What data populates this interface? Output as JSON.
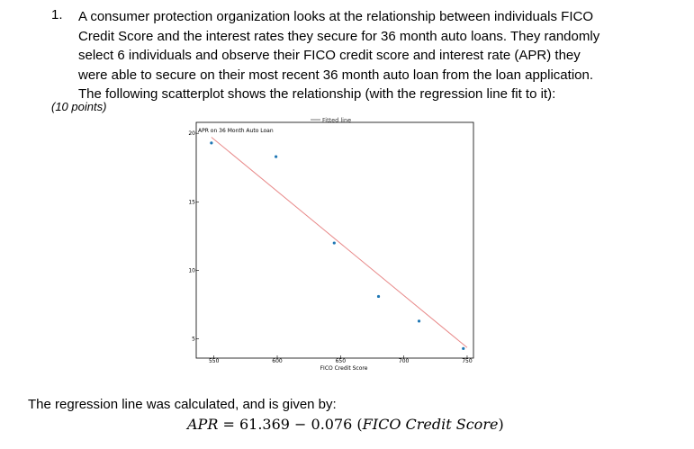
{
  "question": {
    "number": "1.",
    "lines": [
      "A consumer protection organization looks at the relationship between individuals FICO",
      "Credit Score and the interest rates they secure for 36 month auto loans. They randomly",
      "select 6 individuals and observe their FICO credit score and interest rate (APR) they",
      "were able to secure on their most recent 36 month auto loan from the loan application.",
      "The following scatterplot shows the relationship (with the regression line fit to it):"
    ],
    "points": "(10 points)"
  },
  "chart_data": {
    "type": "scatter",
    "title": "",
    "xlabel": "FICO Credit Score",
    "ylabel": "APR on 36 Month Auto Loan",
    "xlim": [
      536,
      755
    ],
    "ylim": [
      3.6,
      20.8
    ],
    "xticks": [
      550,
      600,
      650,
      700,
      750
    ],
    "yticks": [
      5,
      10,
      15,
      20
    ],
    "grid": false,
    "legend": {
      "placement": "top-right",
      "entries": [
        "Fitted line"
      ]
    },
    "points": [
      {
        "x": 548,
        "y": 19.3
      },
      {
        "x": 599,
        "y": 18.3
      },
      {
        "x": 645,
        "y": 12.0
      },
      {
        "x": 680,
        "y": 8.1
      },
      {
        "x": 712,
        "y": 6.3
      },
      {
        "x": 747,
        "y": 4.3
      }
    ],
    "fitted_line": {
      "x": [
        548,
        750
      ],
      "y": [
        19.72,
        4.37
      ],
      "color": "#e88a8a"
    },
    "point_color": "#1f77b4"
  },
  "regression": {
    "intro": "The regression line was calculated, and is given by:",
    "lhs": "APR",
    "rhs_prefix": " = 61.369 − 0.076 (",
    "variable": "FICO Credit Score",
    "rhs_suffix": ")"
  }
}
